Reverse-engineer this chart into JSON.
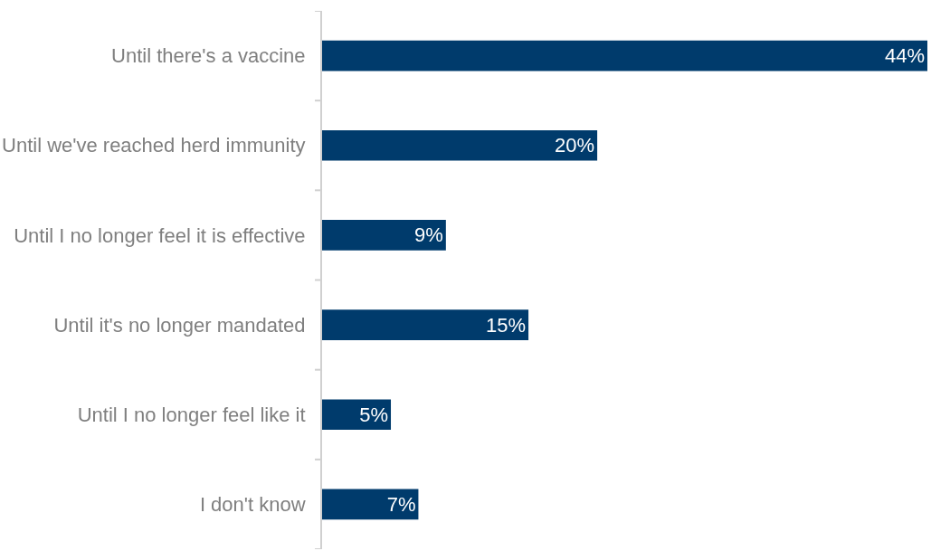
{
  "chart_data": {
    "type": "bar",
    "orientation": "horizontal",
    "categories": [
      "Until there's a vaccine",
      "Until we've reached herd immunity",
      "Until I no longer feel it is effective",
      "Until it's no longer mandated",
      "Until I no longer feel like it",
      "I don't know"
    ],
    "values": [
      44,
      20,
      9,
      15,
      5,
      7
    ],
    "value_labels": [
      "44%",
      "20%",
      "9%",
      "15%",
      "5%",
      "7%"
    ],
    "color": "#003b6c"
  }
}
